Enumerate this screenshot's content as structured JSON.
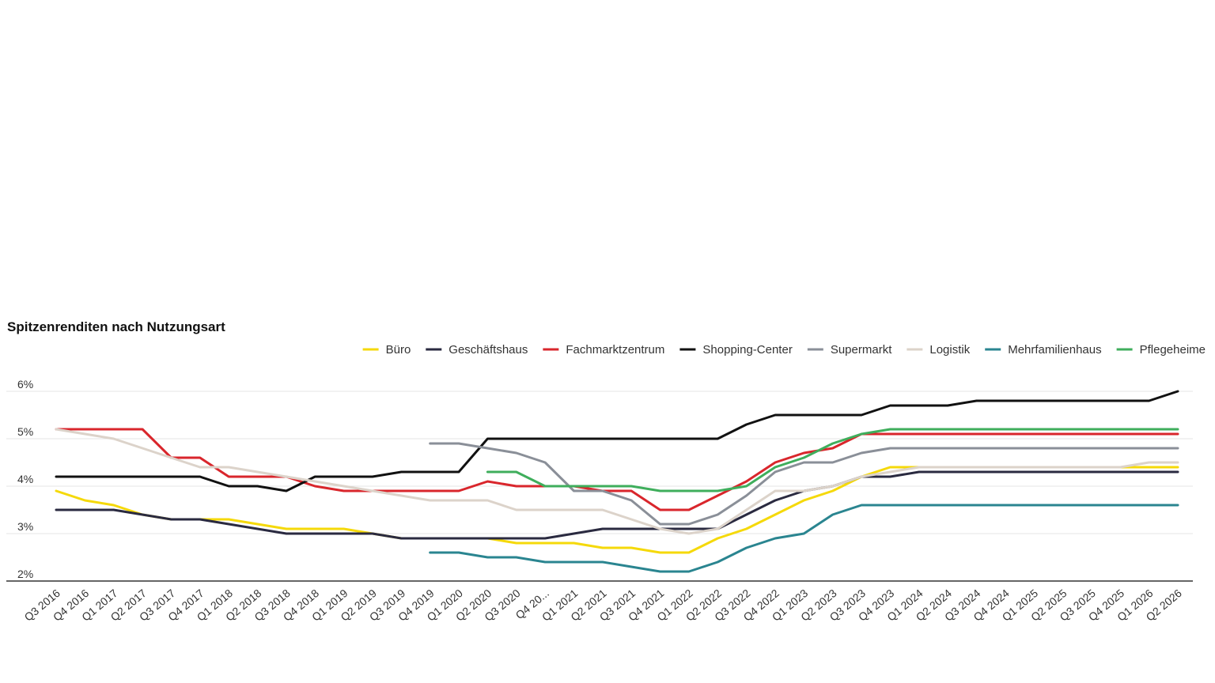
{
  "chart_data": {
    "type": "line",
    "title": "Spitzenrenditen nach Nutzungsart",
    "xlabel": "",
    "ylabel": "",
    "ylim": [
      2,
      6
    ],
    "yticks": [
      2,
      3,
      4,
      5,
      6
    ],
    "ytick_labels": [
      "2%",
      "3%",
      "4%",
      "5%",
      "6%"
    ],
    "grid": true,
    "legend_position": "top-right",
    "categories": [
      "Q3 2016",
      "Q4 2016",
      "Q1 2017",
      "Q2 2017",
      "Q3 2017",
      "Q4 2017",
      "Q1 2018",
      "Q2 2018",
      "Q3 2018",
      "Q4 2018",
      "Q1 2019",
      "Q2 2019",
      "Q3 2019",
      "Q4 2019",
      "Q1 2020",
      "Q2 2020",
      "Q3 2020",
      "Q4 20...",
      "Q1 2021",
      "Q2 2021",
      "Q3 2021",
      "Q4 2021",
      "Q1 2022",
      "Q2 2022",
      "Q3 2022",
      "Q4 2022",
      "Q1 2023",
      "Q2 2023",
      "Q3 2023",
      "Q4 2023",
      "Q1 2024",
      "Q2 2024",
      "Q3 2024",
      "Q4 2024",
      "Q1 2025",
      "Q2 2025",
      "Q3 2025",
      "Q4 2025",
      "Q1 2026",
      "Q2 2026"
    ],
    "series": [
      {
        "name": "Büro",
        "color": "#f5d90a",
        "values": [
          3.9,
          3.7,
          3.6,
          3.4,
          3.3,
          3.3,
          3.3,
          3.2,
          3.1,
          3.1,
          3.1,
          3.0,
          2.9,
          2.9,
          2.9,
          2.9,
          2.8,
          2.8,
          2.8,
          2.7,
          2.7,
          2.6,
          2.6,
          2.9,
          3.1,
          3.4,
          3.7,
          3.9,
          4.2,
          4.4,
          4.4,
          4.4,
          4.4,
          4.4,
          4.4,
          4.4,
          4.4,
          4.4,
          4.4,
          4.4
        ]
      },
      {
        "name": "Geschäftshaus",
        "color": "#2a2a40",
        "values": [
          3.5,
          3.5,
          3.5,
          3.4,
          3.3,
          3.3,
          3.2,
          3.1,
          3.0,
          3.0,
          3.0,
          3.0,
          2.9,
          2.9,
          2.9,
          2.9,
          2.9,
          2.9,
          3.0,
          3.1,
          3.1,
          3.1,
          3.1,
          3.1,
          3.4,
          3.7,
          3.9,
          4.0,
          4.2,
          4.2,
          4.3,
          4.3,
          4.3,
          4.3,
          4.3,
          4.3,
          4.3,
          4.3,
          4.3,
          4.3
        ]
      },
      {
        "name": "Fachmarktzentrum",
        "color": "#d9262c",
        "values": [
          5.2,
          5.2,
          5.2,
          5.2,
          4.6,
          4.6,
          4.2,
          4.2,
          4.2,
          4.0,
          3.9,
          3.9,
          3.9,
          3.9,
          3.9,
          4.1,
          4.0,
          4.0,
          4.0,
          3.9,
          3.9,
          3.5,
          3.5,
          3.8,
          4.1,
          4.5,
          4.7,
          4.8,
          5.1,
          5.1,
          5.1,
          5.1,
          5.1,
          5.1,
          5.1,
          5.1,
          5.1,
          5.1,
          5.1,
          5.1
        ]
      },
      {
        "name": "Shopping-Center",
        "color": "#111111",
        "values": [
          4.2,
          4.2,
          4.2,
          4.2,
          4.2,
          4.2,
          4.0,
          4.0,
          3.9,
          4.2,
          4.2,
          4.2,
          4.3,
          4.3,
          4.3,
          5.0,
          5.0,
          5.0,
          5.0,
          5.0,
          5.0,
          5.0,
          5.0,
          5.0,
          5.3,
          5.5,
          5.5,
          5.5,
          5.5,
          5.7,
          5.7,
          5.7,
          5.8,
          5.8,
          5.8,
          5.8,
          5.8,
          5.8,
          5.8,
          6.0
        ]
      },
      {
        "name": "Supermarkt",
        "color": "#8a8f98",
        "values": [
          null,
          null,
          null,
          null,
          null,
          null,
          null,
          null,
          null,
          null,
          null,
          null,
          null,
          4.9,
          4.9,
          4.8,
          4.7,
          4.5,
          3.9,
          3.9,
          3.7,
          3.2,
          3.2,
          3.4,
          3.8,
          4.3,
          4.5,
          4.5,
          4.7,
          4.8,
          4.8,
          4.8,
          4.8,
          4.8,
          4.8,
          4.8,
          4.8,
          4.8,
          4.8,
          4.8
        ]
      },
      {
        "name": "Logistik",
        "color": "#dcd3ca",
        "values": [
          5.2,
          5.1,
          5.0,
          4.8,
          4.6,
          4.4,
          4.4,
          4.3,
          4.2,
          4.1,
          4.0,
          3.9,
          3.8,
          3.7,
          3.7,
          3.7,
          3.5,
          3.5,
          3.5,
          3.5,
          3.3,
          3.1,
          3.0,
          3.1,
          3.5,
          3.9,
          3.9,
          4.0,
          4.2,
          4.3,
          4.4,
          4.4,
          4.4,
          4.4,
          4.4,
          4.4,
          4.4,
          4.4,
          4.5,
          4.5
        ]
      },
      {
        "name": "Mehrfamilienhaus",
        "color": "#2a8590",
        "values": [
          null,
          null,
          null,
          null,
          null,
          null,
          null,
          null,
          null,
          null,
          null,
          null,
          null,
          2.6,
          2.6,
          2.5,
          2.5,
          2.4,
          2.4,
          2.4,
          2.3,
          2.2,
          2.2,
          2.4,
          2.7,
          2.9,
          3.0,
          3.4,
          3.6,
          3.6,
          3.6,
          3.6,
          3.6,
          3.6,
          3.6,
          3.6,
          3.6,
          3.6,
          3.6,
          3.6
        ]
      },
      {
        "name": "Pflegeheime",
        "color": "#3fae5c",
        "values": [
          null,
          null,
          null,
          null,
          null,
          null,
          null,
          null,
          null,
          null,
          null,
          null,
          null,
          null,
          null,
          4.3,
          4.3,
          4.0,
          4.0,
          4.0,
          4.0,
          3.9,
          3.9,
          3.9,
          4.0,
          4.4,
          4.6,
          4.9,
          5.1,
          5.2,
          5.2,
          5.2,
          5.2,
          5.2,
          5.2,
          5.2,
          5.2,
          5.2,
          5.2,
          5.2
        ]
      }
    ]
  }
}
